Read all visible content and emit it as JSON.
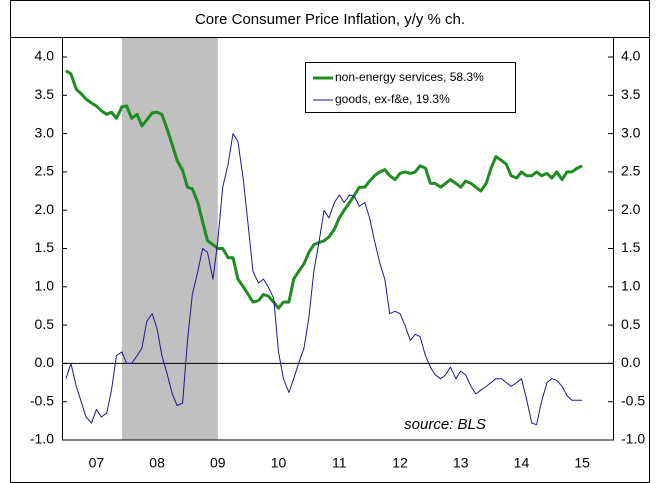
{
  "chart_data": {
    "type": "line",
    "title": "Core Consumer Price Inflation, y/y % ch.",
    "annotation": "source: BLS",
    "shaded_region": [
      2007.92,
      2009.5
    ],
    "xlim": [
      2007,
      2015.6
    ],
    "xticks": [
      {
        "value": 2007.5,
        "label": "07"
      },
      {
        "value": 2008.5,
        "label": "08"
      },
      {
        "value": 2009.5,
        "label": "09"
      },
      {
        "value": 2010.5,
        "label": "10"
      },
      {
        "value": 2011.5,
        "label": "11"
      },
      {
        "value": 2012.5,
        "label": "12"
      },
      {
        "value": 2013.5,
        "label": "13"
      },
      {
        "value": 2014.5,
        "label": "14"
      },
      {
        "value": 2015.5,
        "label": "15"
      }
    ],
    "ylim": [
      -1,
      4
    ],
    "yticks": [
      {
        "value": 4,
        "label": "4.0"
      },
      {
        "value": 3.5,
        "label": "3.5"
      },
      {
        "value": 3,
        "label": "3.0"
      },
      {
        "value": 2.5,
        "label": "2.5"
      },
      {
        "value": 2,
        "label": "2.0"
      },
      {
        "value": 1.5,
        "label": "1.5"
      },
      {
        "value": 1,
        "label": "1.0"
      },
      {
        "value": 0.5,
        "label": "0.5"
      },
      {
        "value": 0,
        "label": "0.0"
      },
      {
        "value": -0.5,
        "label": "-0.5"
      },
      {
        "value": -1,
        "label": "-1.0"
      }
    ],
    "y2lim": [
      -1,
      4
    ],
    "y2ticks": [
      {
        "value": 4,
        "label": "4.0"
      },
      {
        "value": 3.5,
        "label": "3.5"
      },
      {
        "value": 3,
        "label": "3.0"
      },
      {
        "value": 2.5,
        "label": "2.5"
      },
      {
        "value": 2,
        "label": "2.0"
      },
      {
        "value": 1.5,
        "label": "1.5"
      },
      {
        "value": 1,
        "label": "1.0"
      },
      {
        "value": 0.5,
        "label": "0.5"
      },
      {
        "value": 0,
        "label": "0.0"
      },
      {
        "value": -0.5,
        "label": "-0.5"
      },
      {
        "value": -1,
        "label": "-1.0"
      }
    ],
    "x": [
      2007.0,
      2007.08,
      2007.17,
      2007.25,
      2007.33,
      2007.42,
      2007.5,
      2007.58,
      2007.67,
      2007.75,
      2007.83,
      2007.92,
      2008.0,
      2008.08,
      2008.17,
      2008.25,
      2008.33,
      2008.42,
      2008.5,
      2008.58,
      2008.67,
      2008.75,
      2008.83,
      2008.92,
      2009.0,
      2009.08,
      2009.17,
      2009.25,
      2009.33,
      2009.42,
      2009.5,
      2009.58,
      2009.67,
      2009.75,
      2009.83,
      2009.92,
      2010.0,
      2010.08,
      2010.17,
      2010.25,
      2010.33,
      2010.42,
      2010.5,
      2010.58,
      2010.67,
      2010.75,
      2010.83,
      2010.92,
      2011.0,
      2011.08,
      2011.17,
      2011.25,
      2011.33,
      2011.42,
      2011.5,
      2011.58,
      2011.67,
      2011.75,
      2011.83,
      2011.92,
      2012.0,
      2012.08,
      2012.17,
      2012.25,
      2012.33,
      2012.42,
      2012.5,
      2012.58,
      2012.67,
      2012.75,
      2012.83,
      2012.92,
      2013.0,
      2013.08,
      2013.17,
      2013.25,
      2013.33,
      2013.42,
      2013.5,
      2013.58,
      2013.67,
      2013.75,
      2013.83,
      2013.92,
      2014.0,
      2014.08,
      2014.17,
      2014.25,
      2014.33,
      2014.42,
      2014.5,
      2014.58,
      2014.67,
      2014.75,
      2014.83,
      2014.92,
      2015.0,
      2015.08,
      2015.17,
      2015.25,
      2015.33,
      2015.42,
      2015.5
    ],
    "series": [
      {
        "name": "non-energy services, 58.3%",
        "color": "#1e8c1e",
        "width": 3,
        "values": [
          3.82,
          3.78,
          3.58,
          3.52,
          3.45,
          3.4,
          3.36,
          3.3,
          3.25,
          3.28,
          3.2,
          3.35,
          3.36,
          3.2,
          3.25,
          3.1,
          3.18,
          3.27,
          3.28,
          3.25,
          3.05,
          2.85,
          2.65,
          2.52,
          2.3,
          2.28,
          2.1,
          1.85,
          1.6,
          1.55,
          1.5,
          1.5,
          1.38,
          1.38,
          1.1,
          1.0,
          0.9,
          0.8,
          0.82,
          0.9,
          0.88,
          0.8,
          0.72,
          0.8,
          0.8,
          1.1,
          1.2,
          1.3,
          1.45,
          1.55,
          1.58,
          1.6,
          1.65,
          1.75,
          1.9,
          2.0,
          2.1,
          2.2,
          2.3,
          2.3,
          2.38,
          2.45,
          2.5,
          2.53,
          2.45,
          2.4,
          2.48,
          2.5,
          2.48,
          2.5,
          2.58,
          2.55,
          2.35,
          2.35,
          2.3,
          2.35,
          2.4,
          2.35,
          2.3,
          2.38,
          2.35,
          2.3,
          2.25,
          2.35,
          2.55,
          2.7,
          2.65,
          2.6,
          2.45,
          2.42,
          2.5,
          2.45,
          2.45,
          2.5,
          2.45,
          2.48,
          2.42,
          2.5,
          2.4,
          2.5,
          2.5,
          2.55,
          2.58
        ]
      },
      {
        "name": "goods, ex-f&e, 19.3%",
        "color": "#1a1a8c",
        "width": 1,
        "values": [
          -0.2,
          0.0,
          -0.3,
          -0.5,
          -0.7,
          -0.78,
          -0.6,
          -0.7,
          -0.65,
          -0.35,
          0.1,
          0.15,
          0.0,
          0.0,
          0.1,
          0.2,
          0.55,
          0.65,
          0.45,
          0.1,
          -0.15,
          -0.4,
          -0.55,
          -0.52,
          0.3,
          0.9,
          1.2,
          1.5,
          1.45,
          1.1,
          1.6,
          2.3,
          2.6,
          3.0,
          2.9,
          2.4,
          1.8,
          1.2,
          1.05,
          1.1,
          1.0,
          0.85,
          0.15,
          -0.2,
          -0.38,
          -0.2,
          0.0,
          0.2,
          0.6,
          1.2,
          1.6,
          2.0,
          1.9,
          2.1,
          2.2,
          2.1,
          2.2,
          2.18,
          2.05,
          2.1,
          1.9,
          1.6,
          1.3,
          1.1,
          0.65,
          0.68,
          0.65,
          0.5,
          0.3,
          0.38,
          0.35,
          0.1,
          -0.05,
          -0.15,
          -0.2,
          -0.15,
          -0.05,
          -0.2,
          -0.1,
          -0.15,
          -0.3,
          -0.4,
          -0.35,
          -0.3,
          -0.25,
          -0.2,
          -0.2,
          -0.25,
          -0.3,
          -0.25,
          -0.2,
          -0.45,
          -0.78,
          -0.8,
          -0.5,
          -0.25,
          -0.2,
          -0.22,
          -0.3,
          -0.42,
          -0.48,
          -0.48,
          -0.48
        ]
      }
    ]
  }
}
